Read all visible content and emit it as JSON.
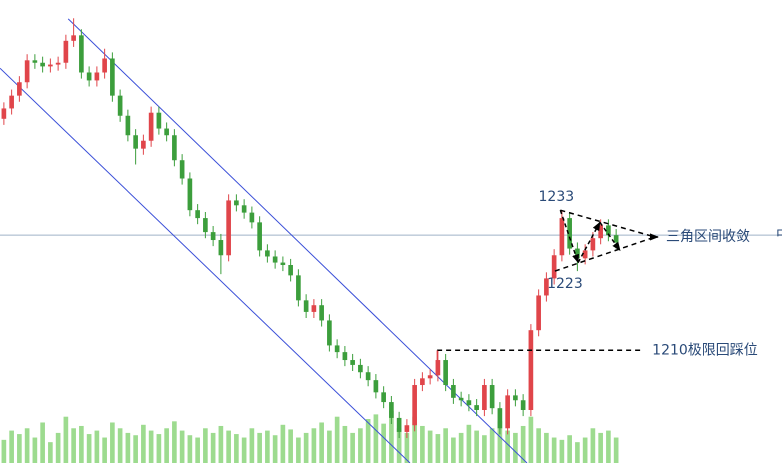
{
  "chart_data": {
    "type": "candlestick",
    "xlim": [
      -0.5,
      100.4
    ],
    "ylim": [
      1191.5,
      1267.5
    ],
    "up_color": "#e0454a",
    "down_color": "#3c9e3c",
    "open": [
      1248.0,
      1249.7,
      1251.8,
      1254.0,
      1257.6,
      1257.2,
      1256.6,
      1256.9,
      1257.2,
      1260.8,
      1261.7,
      1255.6,
      1254.3,
      1255.6,
      1257.9,
      1251.8,
      1248.5,
      1245.3,
      1243.1,
      1244.4,
      1249.0,
      1246.4,
      1245.3,
      1241.2,
      1238.2,
      1233.0,
      1231.7,
      1229.4,
      1228.1,
      1225.6,
      1234.6,
      1233.8,
      1232.6,
      1231.0,
      1226.4,
      1225.4,
      1224.4,
      1224.0,
      1222.3,
      1218.2,
      1216.3,
      1217.4,
      1214.9,
      1210.8,
      1209.7,
      1208.4,
      1207.6,
      1206.4,
      1205.1,
      1203.1,
      1201.5,
      1198.9,
      1196.6,
      1197.7,
      1204.3,
      1205.4,
      1205.9,
      1208.4,
      1204.3,
      1202.2,
      1201.8,
      1201.0,
      1200.2,
      1204.3,
      1200.5,
      1197.2,
      1202.6,
      1201.8,
      1200.2,
      1213.3,
      1219.0,
      1221.8,
      1225.6,
      1231.7,
      1226.7,
      1225.1,
      1226.4,
      1228.4,
      1230.5,
      1228.9
    ],
    "high": [
      1250.7,
      1252.8,
      1255.0,
      1258.6,
      1258.6,
      1258.2,
      1257.9,
      1258.2,
      1261.8,
      1264.5,
      1262.7,
      1256.6,
      1256.6,
      1259.5,
      1258.9,
      1252.8,
      1249.5,
      1246.3,
      1245.4,
      1250.0,
      1250.0,
      1247.4,
      1246.3,
      1242.2,
      1239.2,
      1234.0,
      1232.7,
      1230.4,
      1229.1,
      1235.6,
      1235.6,
      1234.8,
      1233.6,
      1232.0,
      1227.4,
      1226.4,
      1225.4,
      1225.0,
      1223.3,
      1219.2,
      1218.4,
      1218.4,
      1215.9,
      1211.8,
      1210.7,
      1209.4,
      1208.6,
      1207.4,
      1206.1,
      1204.1,
      1202.5,
      1199.9,
      1198.7,
      1205.3,
      1206.4,
      1206.9,
      1210.0,
      1209.4,
      1205.3,
      1203.2,
      1202.8,
      1202.0,
      1205.3,
      1205.3,
      1201.5,
      1203.6,
      1203.6,
      1202.8,
      1214.3,
      1220.0,
      1222.8,
      1226.6,
      1233.0,
      1232.7,
      1227.7,
      1227.4,
      1229.4,
      1231.5,
      1231.5,
      1229.9
    ],
    "low": [
      1247.0,
      1248.7,
      1250.8,
      1253.0,
      1256.2,
      1255.6,
      1255.6,
      1255.9,
      1256.2,
      1259.8,
      1254.6,
      1253.3,
      1253.3,
      1254.6,
      1250.8,
      1247.5,
      1244.3,
      1240.5,
      1242.1,
      1243.4,
      1245.4,
      1244.3,
      1240.2,
      1237.2,
      1232.0,
      1230.7,
      1228.4,
      1227.1,
      1222.5,
      1224.6,
      1232.8,
      1231.6,
      1230.0,
      1225.4,
      1224.4,
      1223.4,
      1223.0,
      1221.3,
      1217.2,
      1215.3,
      1215.3,
      1213.9,
      1209.8,
      1208.7,
      1207.4,
      1206.6,
      1205.4,
      1204.1,
      1202.1,
      1200.5,
      1197.9,
      1195.6,
      1195.6,
      1196.7,
      1203.3,
      1204.4,
      1204.9,
      1203.3,
      1201.2,
      1200.8,
      1200.0,
      1199.2,
      1199.2,
      1199.5,
      1196.2,
      1196.2,
      1200.8,
      1199.2,
      1199.2,
      1212.3,
      1218.0,
      1220.8,
      1224.6,
      1225.7,
      1223.0,
      1224.1,
      1225.4,
      1227.4,
      1227.9,
      1226.7
    ],
    "close": [
      1249.7,
      1251.8,
      1254.0,
      1257.6,
      1257.2,
      1256.6,
      1256.9,
      1257.2,
      1260.8,
      1261.7,
      1255.6,
      1254.3,
      1255.6,
      1257.9,
      1251.8,
      1248.5,
      1245.3,
      1243.1,
      1244.4,
      1249.0,
      1246.4,
      1245.3,
      1241.2,
      1238.2,
      1233.0,
      1231.7,
      1229.4,
      1228.1,
      1225.6,
      1234.6,
      1233.8,
      1232.6,
      1231.0,
      1226.4,
      1225.4,
      1224.4,
      1224.0,
      1222.3,
      1218.2,
      1216.3,
      1217.4,
      1214.9,
      1210.8,
      1209.7,
      1208.4,
      1207.6,
      1206.4,
      1205.1,
      1203.1,
      1201.5,
      1198.9,
      1196.6,
      1197.7,
      1204.3,
      1205.4,
      1205.9,
      1208.4,
      1204.3,
      1202.2,
      1201.8,
      1201.0,
      1200.2,
      1204.3,
      1200.5,
      1197.2,
      1202.6,
      1201.8,
      1200.2,
      1213.3,
      1219.0,
      1221.8,
      1225.6,
      1231.7,
      1226.7,
      1225.1,
      1226.4,
      1228.4,
      1230.5,
      1228.9,
      1227.7
    ],
    "volume": [
      20,
      28,
      25,
      30,
      22,
      35,
      18,
      26,
      40,
      30,
      32,
      25,
      28,
      22,
      35,
      30,
      26,
      24,
      33,
      28,
      25,
      30,
      36,
      28,
      24,
      22,
      30,
      26,
      32,
      28,
      25,
      22,
      30,
      26,
      28,
      24,
      33,
      29,
      22,
      26,
      30,
      35,
      28,
      40,
      32,
      26,
      30,
      38,
      42,
      34,
      45,
      30,
      26,
      40,
      32,
      28,
      25,
      30,
      22,
      26,
      33,
      28,
      24,
      30,
      36,
      28,
      26,
      32,
      40,
      30,
      26,
      22,
      20,
      24,
      18,
      22,
      30,
      26,
      28,
      22
    ],
    "volume_lim": [
      0,
      400
    ],
    "volume_color": "#7ccf6a",
    "ref_line": 1228.9,
    "ref_line_color": "#9fb2c6",
    "ref_line_label": "中",
    "channel": {
      "color": "#3a4fd8",
      "upper": [
        [
          8.3,
          1264.4
        ],
        [
          67.5,
          1191.5
        ]
      ],
      "lower": [
        [
          -0.5,
          1256.3
        ],
        [
          52.4,
          1191.5
        ]
      ]
    },
    "triangle": {
      "high": 1233,
      "high_x": 71.8,
      "low": 1223,
      "low_x": 71.1,
      "apex": [
        84.0,
        1228.6
      ],
      "zigzag": [
        [
          71.8,
          1233.0
        ],
        [
          74.1,
          1224.4
        ],
        [
          76.9,
          1231.0
        ],
        [
          79.5,
          1226.4
        ]
      ],
      "label": "三角区间收敛"
    },
    "support": {
      "value": 1210,
      "x": [
        55.9,
        82.1
      ],
      "label": "1210极限回踩位"
    }
  }
}
